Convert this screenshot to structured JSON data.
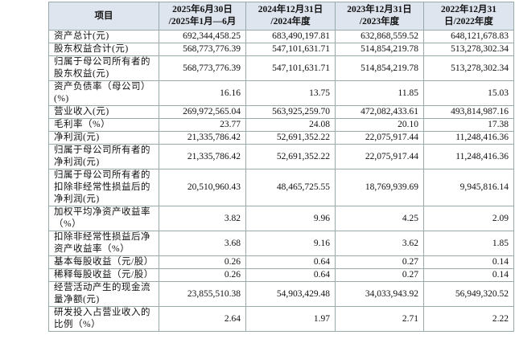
{
  "table": {
    "header": [
      [
        "项目"
      ],
      [
        "2025年6月30日",
        "/2025年1月—6月"
      ],
      [
        "2024年12月31日",
        "/2024年度"
      ],
      [
        "2023年12月31日",
        "/2023年度"
      ],
      [
        "2022年12月31",
        "日/2022年度"
      ]
    ],
    "rows": [
      [
        "资产总计(元)",
        "692,344,458.25",
        "683,490,197.81",
        "632,868,559.52",
        "648,121,678.83"
      ],
      [
        "股东权益合计(元)",
        "568,773,776.39",
        "547,101,631.71",
        "514,854,219.78",
        "513,278,302.34"
      ],
      [
        "归属于母公司所有者的股东权益(元)",
        "568,773,776.39",
        "547,101,631.71",
        "514,854,219.78",
        "513,278,302.34"
      ],
      [
        "资产负债率（母公司）(%)",
        "16.16",
        "13.75",
        "11.85",
        "15.03"
      ],
      [
        "营业收入(元)",
        "269,972,565.04",
        "563,925,259.70",
        "472,082,433.61",
        "493,814,987.16"
      ],
      [
        "毛利率（%）",
        "23.77",
        "24.08",
        "20.10",
        "17.38"
      ],
      [
        "净利润(元)",
        "21,335,786.42",
        "52,691,352.22",
        "22,075,917.44",
        "11,248,416.36"
      ],
      [
        "归属于母公司所有者的净利润(元)",
        "21,335,786.42",
        "52,691,352.22",
        "22,075,917.44",
        "11,248,416.36"
      ],
      [
        "归属于母公司所有者的扣除非经常性损益后的净利润(元)",
        "20,510,960.43",
        "48,465,725.55",
        "18,769,939.69",
        "9,945,816.14"
      ],
      [
        "加权平均净资产收益率（%）",
        "3.82",
        "9.96",
        "4.25",
        "2.09"
      ],
      [
        "扣除非经常性损益后净资产收益率（%）",
        "3.68",
        "9.16",
        "3.62",
        "1.85"
      ],
      [
        "基本每股收益（元/股）",
        "0.26",
        "0.64",
        "0.27",
        "0.14"
      ],
      [
        "稀释每股收益（元/股）",
        "0.26",
        "0.64",
        "0.27",
        "0.14"
      ],
      [
        "经营活动产生的现金流量净额(元)",
        "23,855,510.38",
        "54,903,429.48",
        "34,033,943.92",
        "56,949,320.52"
      ],
      [
        "研发投入占营业收入的比例（%）",
        "2.64",
        "1.97",
        "2.71",
        "2.22"
      ]
    ]
  }
}
